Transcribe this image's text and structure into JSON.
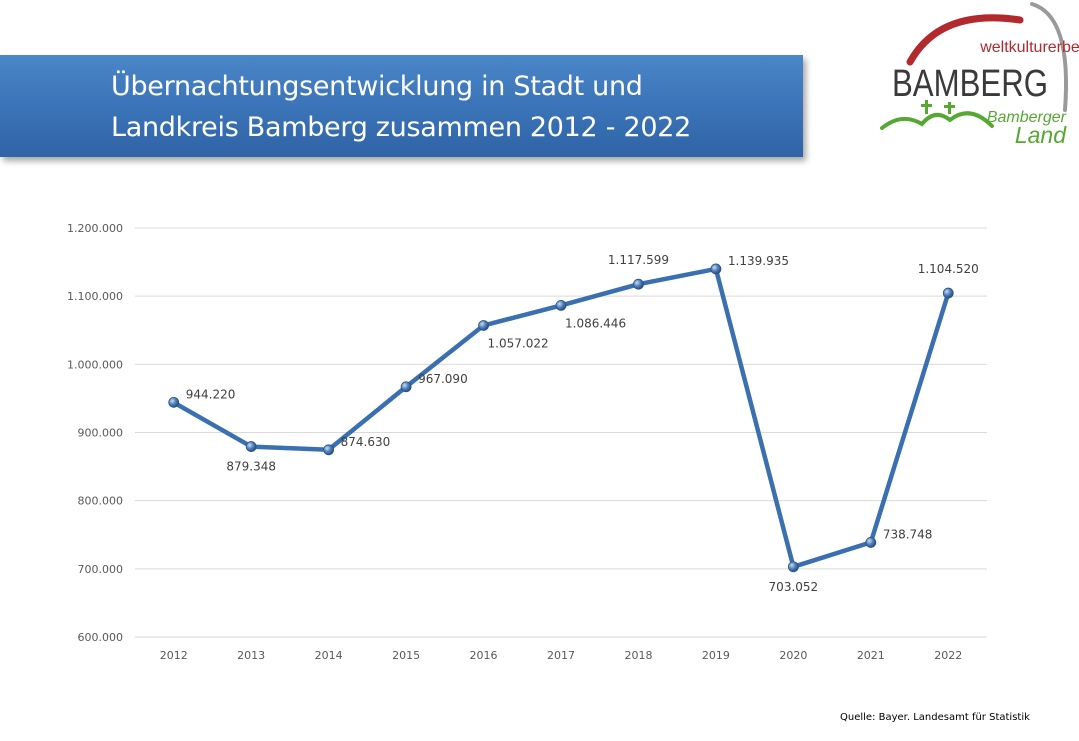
{
  "header": {
    "title_line1": "Übernachtungsentwicklung in Stadt und",
    "title_line2": "Landkreis Bamberg zusammen 2012 - 2022"
  },
  "logo": {
    "top_text": "weltkulturerbe",
    "main_text": "BAMBERG",
    "sub_text": "Bamberger",
    "land_text": "Land",
    "colors": {
      "arc_red": "#b22a2e",
      "arc_gray": "#9a9a9a",
      "green": "#56a832",
      "dark": "#3a3a3a"
    }
  },
  "source": "Quelle: Bayer. Landesamt für Statistik",
  "chart_data": {
    "type": "line",
    "categories": [
      "2012",
      "2013",
      "2014",
      "2015",
      "2016",
      "2017",
      "2018",
      "2019",
      "2020",
      "2021",
      "2022"
    ],
    "series": [
      {
        "values": [
          944220,
          879348,
          874630,
          967090,
          1057022,
          1086446,
          1117599,
          1139935,
          703052,
          738748,
          1104520
        ]
      }
    ],
    "data_labels": [
      "944.220",
      "879.348",
      "874.630",
      "967.090",
      "1.057.022",
      "1.086.446",
      "1.117.599",
      "1.139.935",
      "703.052",
      "738.748",
      "1.104.520"
    ],
    "y_ticks": [
      600000,
      700000,
      800000,
      900000,
      1000000,
      1100000,
      1200000
    ],
    "y_tick_labels": [
      "600.000",
      "700.000",
      "800.000",
      "900.000",
      "1.000.000",
      "1.100.000",
      "1.200.000"
    ],
    "ylim": [
      600000,
      1200000
    ],
    "grid": true,
    "legend": "none",
    "colors": {
      "line": "#4f81bd",
      "grid": "#d9d9d9"
    }
  }
}
